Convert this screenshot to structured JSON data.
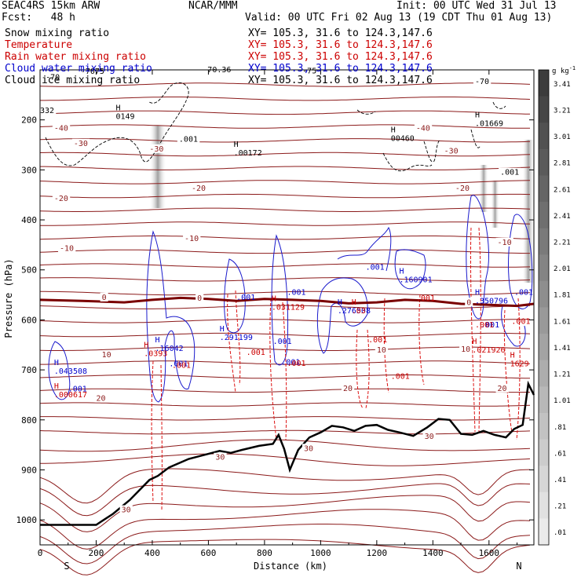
{
  "header": {
    "model": "SEAC4RS 15km ARW",
    "org": "NCAR/MMM",
    "init": "Init: 00 UTC Wed 31 Jul 13",
    "fcst": "Fcst:   48 h",
    "valid": "Valid: 00 UTC Fri 02 Aug 13 (19 CDT Thu 01 Aug 13)"
  },
  "legend": [
    {
      "name": "Snow mixing ratio",
      "xy": "XY= 105.3, 31.6 to 124.3,147.6",
      "color": "#000000"
    },
    {
      "name": "Temperature",
      "xy": "XY= 105.3, 31.6 to 124.3,147.6",
      "color": "#cc0000"
    },
    {
      "name": "Rain water mixing ratio",
      "xy": "XY= 105.3, 31.6 to 124.3,147.6",
      "color": "#cc0000"
    },
    {
      "name": "Cloud water mixing ratio",
      "xy": "XY= 105.3, 31.6 to 124.3,147.6",
      "color": "#0000cc"
    },
    {
      "name": "Cloud ice mixing ratio",
      "xy": "XY= 105.3, 31.6 to 124.3,147.6",
      "color": "#000000"
    }
  ],
  "chart_data": {
    "type": "contour cross-section",
    "xlabel": "Distance (km)",
    "ylabel": "Pressure (hPa)",
    "xlim": [
      0,
      1760
    ],
    "ylim": [
      100,
      1050
    ],
    "x_ticks": [
      0,
      200,
      400,
      600,
      800,
      1000,
      1200,
      1400,
      1600
    ],
    "y_ticks": [
      200,
      300,
      400,
      500,
      600,
      700,
      800,
      900,
      1000
    ],
    "end_labels": {
      "left": "S",
      "right": "N"
    },
    "colorbar": {
      "unit": "g kg",
      "unit_exp": "-1",
      "ticks": [
        "3.41",
        "3.21",
        "3.01",
        "2.81",
        "2.61",
        "2.41",
        "2.21",
        "2.01",
        "1.81",
        "1.61",
        "1.41",
        "1.21",
        "1.01",
        ".81",
        ".61",
        ".41",
        ".21",
        ".01"
      ]
    },
    "temperature_labels": [
      {
        "x": 50,
        "p": 222,
        "text": "-40"
      },
      {
        "x": 1340,
        "p": 222,
        "text": "-40"
      },
      {
        "x": 120,
        "p": 252,
        "text": "-30"
      },
      {
        "x": 390,
        "p": 263,
        "text": "-30"
      },
      {
        "x": 1440,
        "p": 267,
        "text": "-30"
      },
      {
        "x": 50,
        "p": 362,
        "text": "-20"
      },
      {
        "x": 540,
        "p": 342,
        "text": "-20"
      },
      {
        "x": 1480,
        "p": 342,
        "text": "-20"
      },
      {
        "x": 70,
        "p": 462,
        "text": "-10"
      },
      {
        "x": 515,
        "p": 442,
        "text": "-10"
      },
      {
        "x": 1630,
        "p": 450,
        "text": "-10"
      },
      {
        "x": 220,
        "p": 560,
        "text": "0"
      },
      {
        "x": 560,
        "p": 562,
        "text": "0"
      },
      {
        "x": 1520,
        "p": 570,
        "text": "0"
      },
      {
        "x": 220,
        "p": 675,
        "text": "10"
      },
      {
        "x": 1200,
        "p": 665,
        "text": "10"
      },
      {
        "x": 1500,
        "p": 664,
        "text": "10"
      },
      {
        "x": 200,
        "p": 762,
        "text": "20"
      },
      {
        "x": 1080,
        "p": 742,
        "text": "20"
      },
      {
        "x": 1630,
        "p": 742,
        "text": "20"
      },
      {
        "x": 1370,
        "p": 838,
        "text": "30"
      },
      {
        "x": 625,
        "p": 880,
        "text": "30"
      },
      {
        "x": 940,
        "p": 862,
        "text": "30"
      },
      {
        "x": 290,
        "p": 985,
        "text": "30"
      }
    ],
    "top_labels": [
      {
        "x": 20,
        "p": 120,
        "text": "-70",
        "color": "#000000"
      },
      {
        "x": 145,
        "p": 108,
        "text": "-7075",
        "color": "#000000"
      },
      {
        "x": 580,
        "p": 105,
        "text": "-70.36",
        "color": "#000000"
      },
      {
        "x": 935,
        "p": 107,
        "text": "-75",
        "color": "#000000"
      },
      {
        "x": 1550,
        "p": 128,
        "text": "-70",
        "color": "#000000"
      },
      {
        "x": 0,
        "p": 186,
        "text": "332",
        "color": "#000000"
      },
      {
        "x": 495,
        "p": 244,
        "text": ".001",
        "color": "#000000"
      },
      {
        "x": 1640,
        "p": 310,
        "text": ".001",
        "color": "#000000"
      }
    ],
    "extrema": [
      {
        "x": 270,
        "p": 198,
        "text": "0149",
        "color": "#000000"
      },
      {
        "x": 690,
        "p": 271,
        "text": ".00172",
        "color": "#000000"
      },
      {
        "x": 1250,
        "p": 242,
        "text": "00460",
        "color": "#000000"
      },
      {
        "x": 1550,
        "p": 212,
        "text": ".01669",
        "color": "#000000"
      },
      {
        "x": 50,
        "p": 708,
        "text": ".043508",
        "color": "#0000cc"
      },
      {
        "x": 410,
        "p": 662,
        "text": ".16042",
        "color": "#0000cc"
      },
      {
        "x": 640,
        "p": 640,
        "text": ".291199",
        "color": "#0000cc"
      },
      {
        "x": 1060,
        "p": 587,
        "text": ".276508",
        "color": "#0000cc"
      },
      {
        "x": 1280,
        "p": 525,
        "text": ".160901",
        "color": "#0000cc"
      },
      {
        "x": 1550,
        "p": 567,
        "text": ".350796",
        "color": "#0000cc"
      },
      {
        "x": 50,
        "p": 755,
        "text": ".000617",
        "color": "#cc0000"
      },
      {
        "x": 370,
        "p": 672,
        "text": ".0393",
        "color": "#cc0000"
      },
      {
        "x": 825,
        "p": 580,
        "text": ".031129",
        "color": "#cc0000"
      },
      {
        "x": 1110,
        "p": 587,
        "text": ".03",
        "color": "#cc0000"
      },
      {
        "x": 1540,
        "p": 665,
        "text": ".021926",
        "color": "#cc0000"
      },
      {
        "x": 1675,
        "p": 693,
        "text": "1629",
        "color": "#cc0000"
      }
    ],
    "contour_labels": [
      {
        "x": 100,
        "p": 743,
        "text": ".001",
        "color": "#0000cc"
      },
      {
        "x": 460,
        "p": 693,
        "text": ".001",
        "color": "#0000cc"
      },
      {
        "x": 700,
        "p": 560,
        "text": ".001",
        "color": "#0000cc"
      },
      {
        "x": 880,
        "p": 550,
        "text": ".001",
        "color": "#0000cc"
      },
      {
        "x": 830,
        "p": 648,
        "text": ".001",
        "color": "#0000cc"
      },
      {
        "x": 860,
        "p": 690,
        "text": ".001",
        "color": "#0000cc"
      },
      {
        "x": 1160,
        "p": 500,
        "text": ".001",
        "color": "#0000cc"
      },
      {
        "x": 1570,
        "p": 615,
        "text": ".001",
        "color": "#0000cc"
      },
      {
        "x": 1690,
        "p": 550,
        "text": ".001",
        "color": "#0000cc"
      },
      {
        "x": 470,
        "p": 696,
        "text": ".001",
        "color": "#cc0000"
      },
      {
        "x": 735,
        "p": 670,
        "text": ".001",
        "color": "#cc0000"
      },
      {
        "x": 880,
        "p": 692,
        "text": ".001",
        "color": "#cc0000"
      },
      {
        "x": 1170,
        "p": 645,
        "text": ".001",
        "color": "#cc0000"
      },
      {
        "x": 1250,
        "p": 718,
        "text": ".001",
        "color": "#cc0000"
      },
      {
        "x": 1340,
        "p": 562,
        "text": ".001",
        "color": "#cc0000"
      },
      {
        "x": 1550,
        "p": 615,
        "text": ".001",
        "color": "#cc0000"
      },
      {
        "x": 1680,
        "p": 608,
        "text": ".001",
        "color": "#cc0000"
      }
    ],
    "terrain": [
      [
        0,
        1010
      ],
      [
        200,
        1010
      ],
      [
        260,
        988
      ],
      [
        320,
        960
      ],
      [
        390,
        920
      ],
      [
        420,
        912
      ],
      [
        460,
        895
      ],
      [
        530,
        878
      ],
      [
        600,
        868
      ],
      [
        640,
        862
      ],
      [
        680,
        866
      ],
      [
        720,
        860
      ],
      [
        780,
        852
      ],
      [
        830,
        848
      ],
      [
        850,
        830
      ],
      [
        870,
        858
      ],
      [
        890,
        900
      ],
      [
        920,
        860
      ],
      [
        960,
        835
      ],
      [
        1000,
        825
      ],
      [
        1040,
        812
      ],
      [
        1080,
        815
      ],
      [
        1120,
        822
      ],
      [
        1160,
        812
      ],
      [
        1200,
        810
      ],
      [
        1240,
        820
      ],
      [
        1280,
        825
      ],
      [
        1330,
        832
      ],
      [
        1380,
        815
      ],
      [
        1420,
        798
      ],
      [
        1460,
        800
      ],
      [
        1500,
        828
      ],
      [
        1540,
        830
      ],
      [
        1580,
        822
      ],
      [
        1620,
        830
      ],
      [
        1660,
        835
      ],
      [
        1690,
        818
      ],
      [
        1720,
        810
      ],
      [
        1740,
        728
      ],
      [
        1760,
        750
      ]
    ],
    "freezing_level": [
      [
        0,
        560
      ],
      [
        150,
        562
      ],
      [
        300,
        565
      ],
      [
        400,
        560
      ],
      [
        500,
        556
      ],
      [
        600,
        558
      ],
      [
        700,
        562
      ],
      [
        800,
        558
      ],
      [
        900,
        560
      ],
      [
        1000,
        562
      ],
      [
        1100,
        567
      ],
      [
        1200,
        565
      ],
      [
        1300,
        560
      ],
      [
        1400,
        562
      ],
      [
        1500,
        568
      ],
      [
        1600,
        570
      ],
      [
        1700,
        572
      ],
      [
        1760,
        568
      ]
    ]
  }
}
